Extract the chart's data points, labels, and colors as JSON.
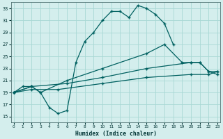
{
  "xlabel": "Humidex (Indice chaleur)",
  "bg_color": "#d4eeed",
  "grid_color": "#a8d8d4",
  "line_color": "#006060",
  "xlim_min": -0.3,
  "xlim_max": 23.3,
  "ylim_min": 14,
  "ylim_max": 34,
  "xticks": [
    0,
    1,
    2,
    3,
    4,
    5,
    6,
    7,
    8,
    9,
    10,
    11,
    12,
    13,
    14,
    15,
    16,
    17,
    18,
    19,
    20,
    21,
    22,
    23
  ],
  "yticks": [
    15,
    17,
    19,
    21,
    23,
    25,
    27,
    29,
    31,
    33
  ],
  "curve_main_x": [
    0,
    1,
    2,
    3,
    4,
    5,
    6,
    7,
    8,
    9,
    10,
    11,
    12,
    13,
    14,
    15,
    16,
    17,
    18
  ],
  "curve_main_y": [
    19.0,
    20.0,
    20.0,
    19.0,
    16.5,
    15.5,
    16.0,
    24.0,
    27.5,
    29.0,
    31.0,
    32.5,
    32.5,
    31.5,
    33.5,
    33.0,
    32.0,
    30.5,
    27.0
  ],
  "curve_upper_x": [
    0,
    2,
    3,
    6,
    10,
    15,
    17,
    19,
    20,
    21,
    22,
    23
  ],
  "curve_upper_y": [
    19.0,
    20.0,
    19.0,
    21.0,
    23.0,
    25.5,
    27.0,
    24.0,
    24.0,
    24.0,
    22.5,
    22.5
  ],
  "curve_mid_x": [
    0,
    2,
    6,
    10,
    15,
    20,
    21,
    22,
    23
  ],
  "curve_mid_y": [
    19.0,
    20.0,
    20.5,
    21.5,
    23.0,
    24.0,
    24.0,
    22.5,
    22.0
  ],
  "curve_low_x": [
    0,
    2,
    5,
    10,
    15,
    20,
    22,
    23
  ],
  "curve_low_y": [
    19.0,
    19.5,
    19.5,
    20.5,
    21.5,
    22.0,
    22.0,
    22.5
  ]
}
